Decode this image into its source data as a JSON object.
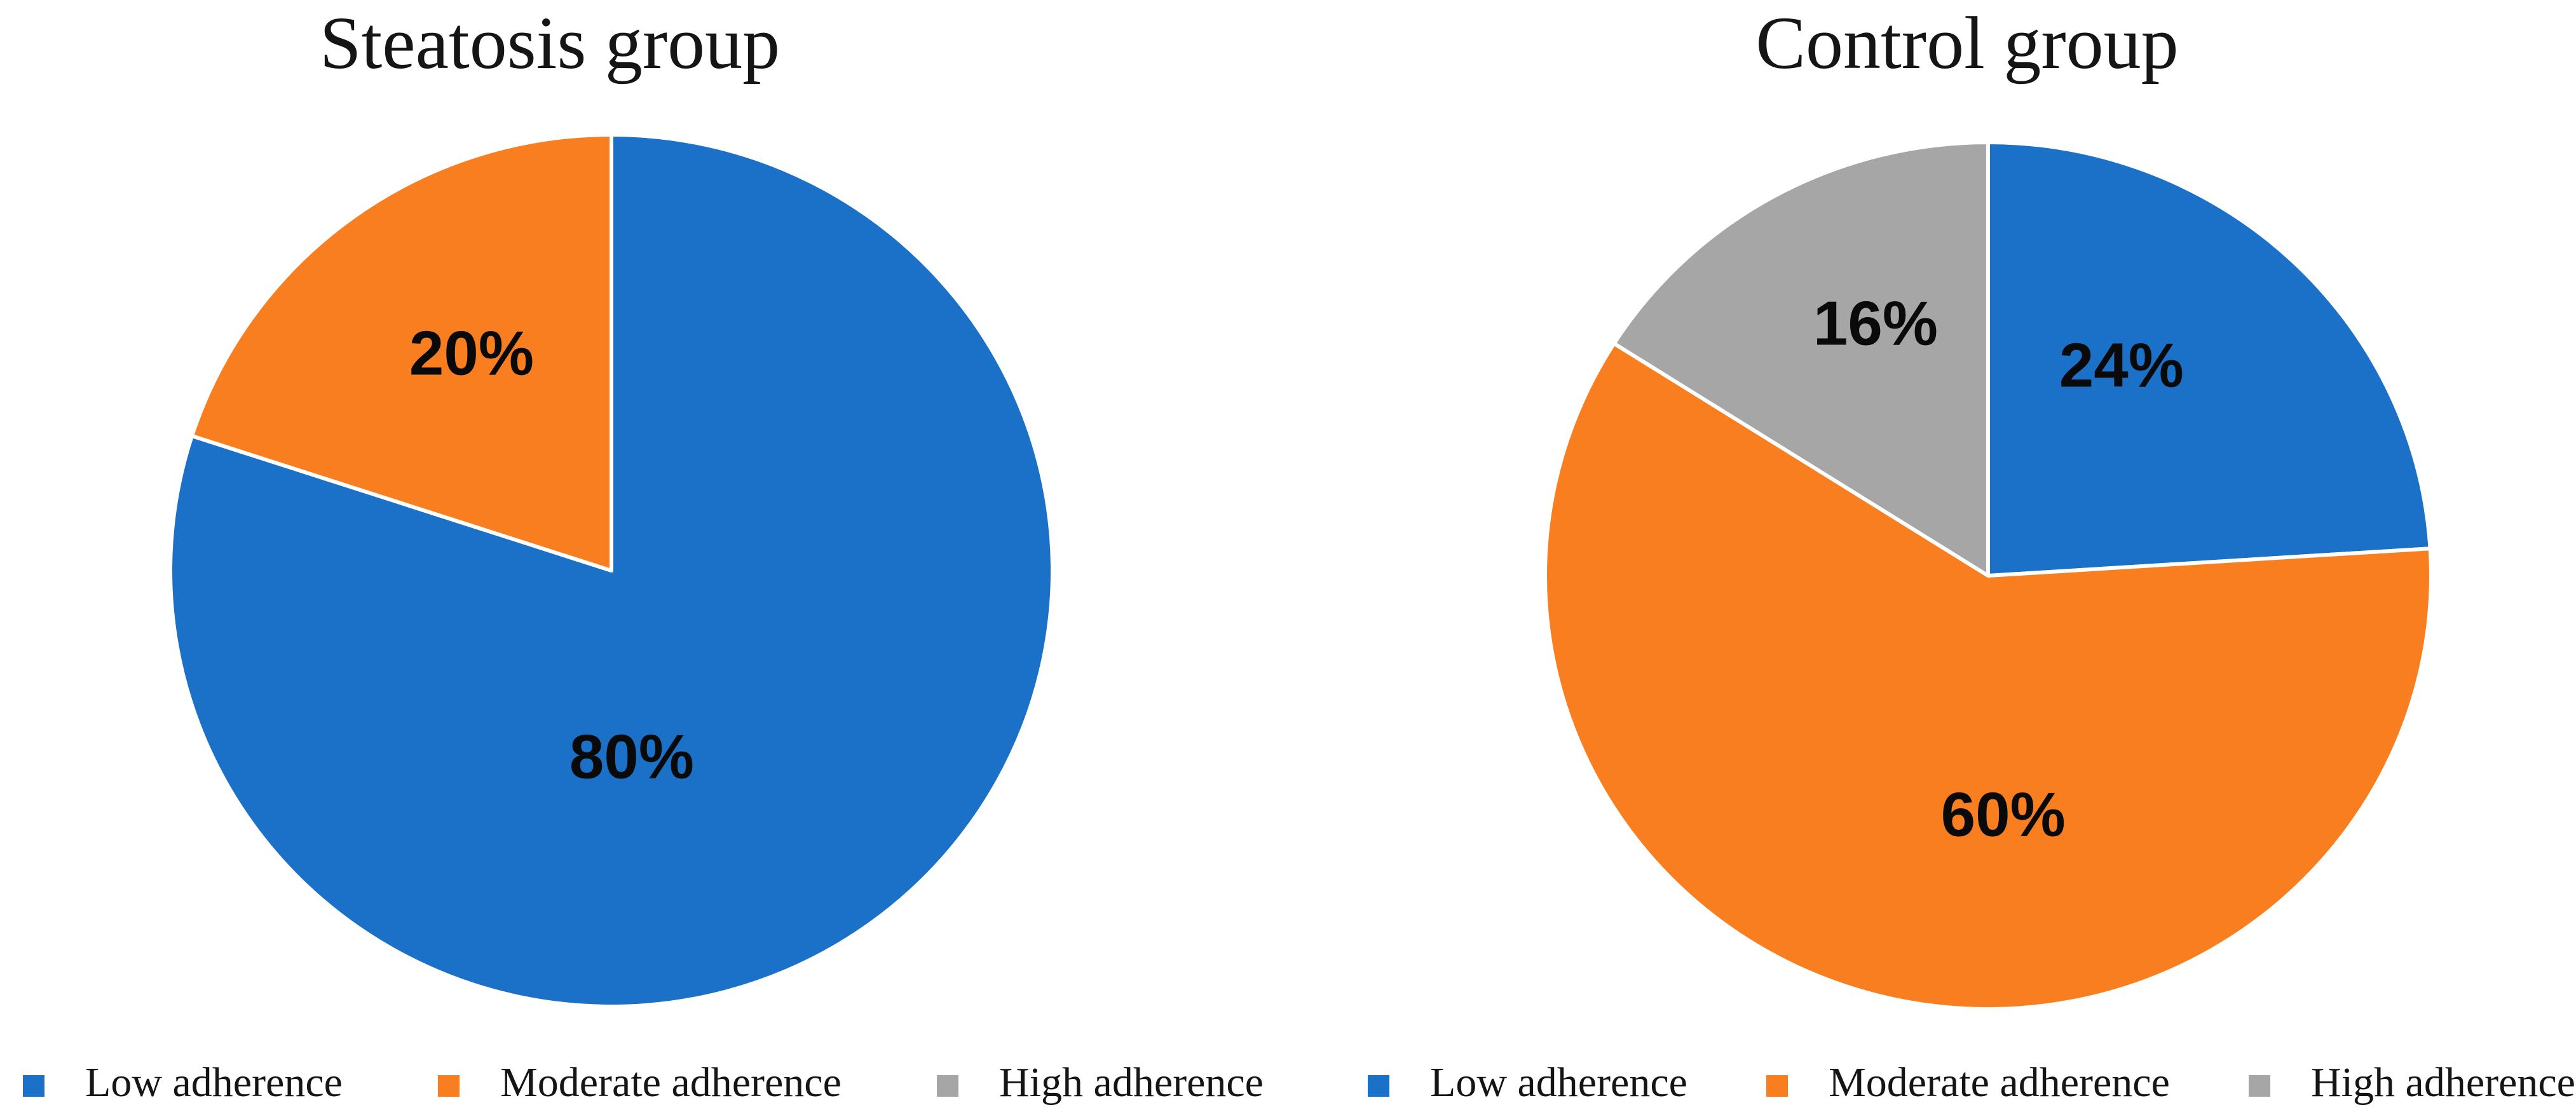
{
  "figure": {
    "background": "#ffffff",
    "text_color": "#151515"
  },
  "chart_data": [
    {
      "type": "pie",
      "title": "Steatosis group",
      "labels": [
        "Low adherence",
        "Moderate adherence",
        "High adherence"
      ],
      "values": [
        80,
        20,
        0
      ],
      "data_labels": [
        "80%",
        "20%",
        null
      ],
      "unit": "%",
      "colors": [
        "#1b71c8",
        "#f87e20",
        "#a6a6a6"
      ],
      "start_angle_deg": 0,
      "direction": "clockwise",
      "legend_position": "bottom",
      "slice_border_color": "#ffffff"
    },
    {
      "type": "pie",
      "title": "Control group",
      "labels": [
        "Low adherence",
        "Moderate adherence",
        "High adherence"
      ],
      "values": [
        24,
        60,
        16
      ],
      "data_labels": [
        "24%",
        "60%",
        "16%"
      ],
      "unit": "%",
      "colors": [
        "#1b71c8",
        "#f87e20",
        "#a6a6a6"
      ],
      "start_angle_deg": 0,
      "direction": "clockwise",
      "legend_position": "bottom",
      "slice_border_color": "#ffffff"
    }
  ]
}
